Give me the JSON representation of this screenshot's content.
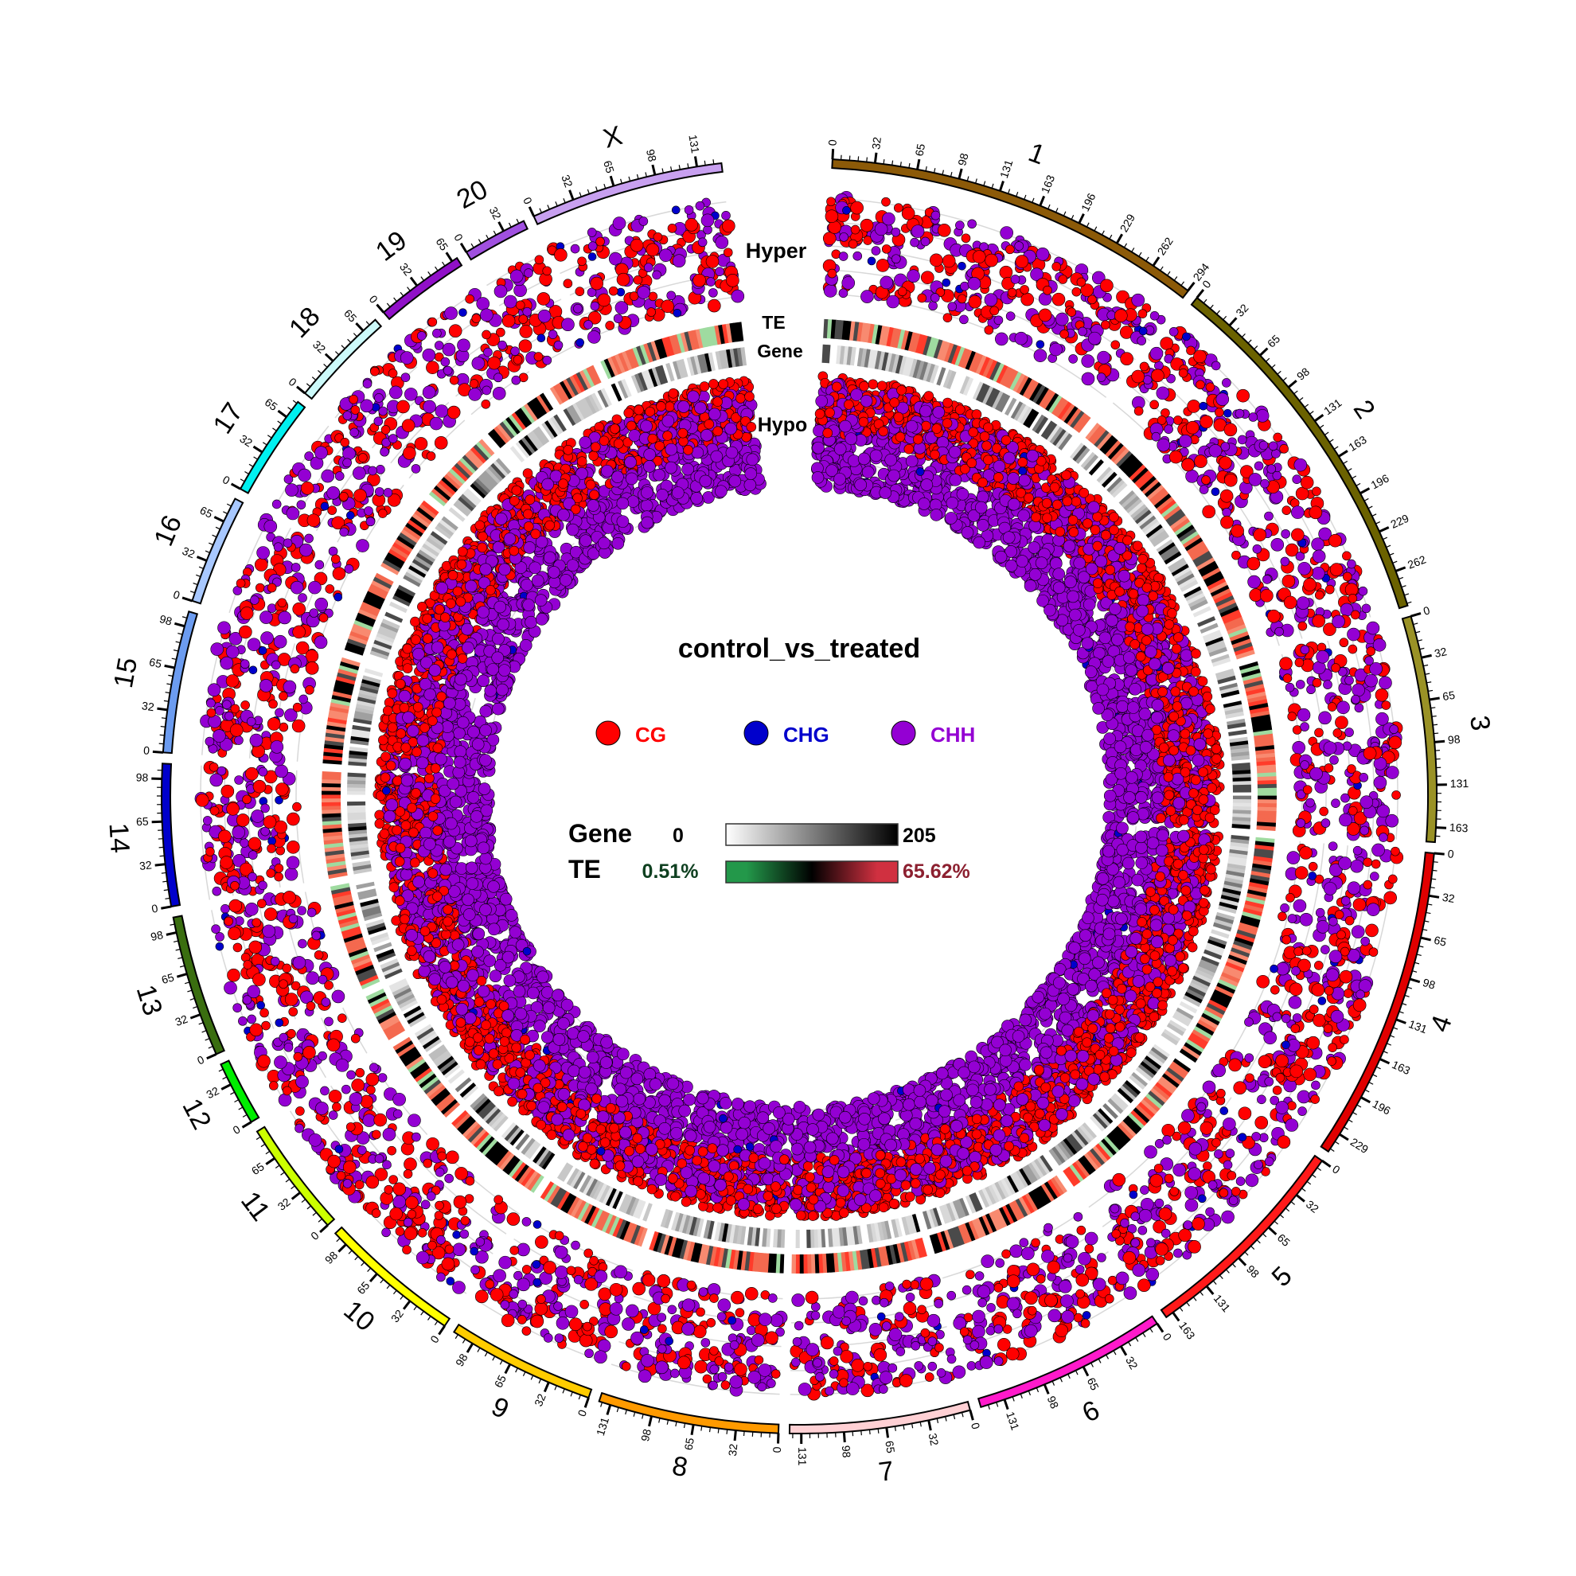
{
  "chart_data": {
    "type": "circos",
    "title": "control_vs_treated",
    "track_labels": {
      "hyper": "Hyper",
      "te": "TE",
      "gene": "Gene",
      "hypo": "Hypo"
    },
    "tick_step_mb": 32.75,
    "chromosomes": [
      {
        "name": "1",
        "length": 295,
        "color": "#8c5a08"
      },
      {
        "name": "2",
        "length": 290,
        "color": "#6b6200"
      },
      {
        "name": "3",
        "length": 175,
        "color": "#9a9226"
      },
      {
        "name": "4",
        "length": 245,
        "color": "#e00000"
      },
      {
        "name": "5",
        "length": 170,
        "color": "#ff1a1a"
      },
      {
        "name": "6",
        "length": 150,
        "color": "#ff1acb"
      },
      {
        "name": "7",
        "length": 140,
        "color": "#ffd0d4"
      },
      {
        "name": "8",
        "length": 140,
        "color": "#ff9a00"
      },
      {
        "name": "9",
        "length": 115,
        "color": "#ffcc00"
      },
      {
        "name": "10",
        "length": 110,
        "color": "#ffff00"
      },
      {
        "name": "11",
        "length": 90,
        "color": "#ccff00"
      },
      {
        "name": "12",
        "length": 50,
        "color": "#00ee00"
      },
      {
        "name": "13",
        "length": 110,
        "color": "#3a6e10"
      },
      {
        "name": "14",
        "length": 110,
        "color": "#0000cc"
      },
      {
        "name": "15",
        "length": 110,
        "color": "#6c9cf0"
      },
      {
        "name": "16",
        "length": 85,
        "color": "#a8c8ff"
      },
      {
        "name": "17",
        "length": 80,
        "color": "#00f0f0"
      },
      {
        "name": "18",
        "length": 78,
        "color": "#ccfafa"
      },
      {
        "name": "19",
        "length": 70,
        "color": "#9010c8"
      },
      {
        "name": "20",
        "length": 50,
        "color": "#a050e0"
      },
      {
        "name": "X",
        "length": 150,
        "color": "#c8a0f0"
      }
    ],
    "legend": {
      "items": [
        {
          "label": "CG",
          "color": "#ff0000"
        },
        {
          "label": "CHG",
          "color": "#0000cc"
        },
        {
          "label": "CHH",
          "color": "#9400d3"
        }
      ],
      "gene_scale": {
        "label": "Gene",
        "min": "0",
        "max": "205",
        "colors": [
          "#ffffff",
          "#000000"
        ]
      },
      "te_scale": {
        "label": "TE",
        "min": "0.51%",
        "max": "65.62%",
        "colors": [
          "#23984a",
          "#000000",
          "#d03040"
        ],
        "min_color": "#0f4020",
        "max_color": "#8c2030"
      }
    }
  }
}
